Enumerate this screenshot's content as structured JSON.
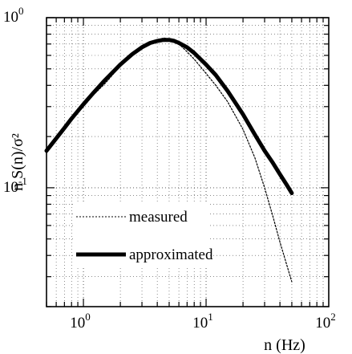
{
  "chart_data": {
    "type": "line",
    "title": "",
    "xlabel": "n  (Hz)",
    "ylabel": "n S(n)/σ²",
    "x_scale": "log",
    "y_scale": "log",
    "xlim": [
      0.5,
      100
    ],
    "ylim": [
      0.02,
      1
    ],
    "grid": true,
    "grid_style": "dotted",
    "legend_position": "lower-left (inside plot)",
    "x_ticks": [
      {
        "value": 1,
        "base": "10",
        "exp": "0"
      },
      {
        "value": 10,
        "base": "10",
        "exp": "1"
      },
      {
        "value": 100,
        "base": "10",
        "exp": "2"
      }
    ],
    "y_ticks": [
      {
        "value": 1,
        "base": "10",
        "exp": "0"
      },
      {
        "value": 0.1,
        "base": "10",
        "exp": "-1"
      }
    ],
    "series": [
      {
        "name": "measured",
        "style": "thin-dotted",
        "color": "#000000",
        "x": [
          0.5,
          0.6,
          0.7,
          0.8,
          1.0,
          1.2,
          1.5,
          2.0,
          2.5,
          3.0,
          3.5,
          4.0,
          4.5,
          5.0,
          5.5,
          6.0,
          7.0,
          8.0,
          10,
          12,
          15,
          20,
          25,
          30,
          35,
          40,
          45,
          50
        ],
        "y": [
          0.16,
          0.19,
          0.22,
          0.25,
          0.3,
          0.35,
          0.41,
          0.52,
          0.6,
          0.66,
          0.71,
          0.74,
          0.76,
          0.75,
          0.73,
          0.7,
          0.63,
          0.57,
          0.47,
          0.4,
          0.32,
          0.22,
          0.15,
          0.1,
          0.068,
          0.048,
          0.036,
          0.028
        ]
      },
      {
        "name": "approximated",
        "style": "thick-solid",
        "color": "#000000",
        "x": [
          0.5,
          0.6,
          0.7,
          0.8,
          1.0,
          1.2,
          1.5,
          2.0,
          2.5,
          3.0,
          3.5,
          4.0,
          4.5,
          5.0,
          5.5,
          6.0,
          7.0,
          8.0,
          10,
          12,
          15,
          20,
          25,
          30,
          35,
          40,
          45,
          50
        ],
        "y": [
          0.165,
          0.195,
          0.225,
          0.255,
          0.31,
          0.36,
          0.43,
          0.53,
          0.61,
          0.67,
          0.71,
          0.73,
          0.74,
          0.74,
          0.73,
          0.71,
          0.67,
          0.62,
          0.53,
          0.46,
          0.37,
          0.27,
          0.205,
          0.165,
          0.14,
          0.12,
          0.105,
          0.093
        ]
      }
    ]
  }
}
